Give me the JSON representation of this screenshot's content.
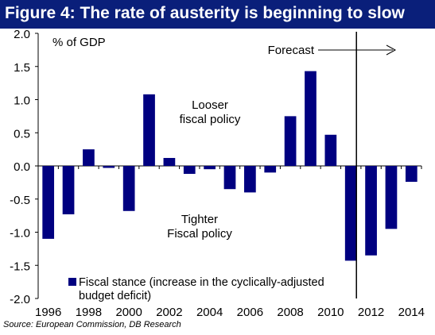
{
  "title": "Figure 4: The rate of austerity is beginning to slow",
  "source": "Source: European Commission, DB Research",
  "colors": {
    "title_bg": "#0a1f7a",
    "bar": "#000080",
    "text": "#000000"
  },
  "chart_data": {
    "type": "bar",
    "title": "Figure 4: The rate of austerity is beginning to slow",
    "ylabel": "% of GDP",
    "ylim": [
      -2.0,
      2.0
    ],
    "yticks": [
      "2.0",
      "1.5",
      "1.0",
      "0.5",
      "0.0",
      "-0.5",
      "-1.0",
      "-1.5",
      "-2.0"
    ],
    "ytick_values": [
      2.0,
      1.5,
      1.0,
      0.5,
      0.0,
      -0.5,
      -1.0,
      -1.5,
      -2.0
    ],
    "categories": [
      "1996",
      "1997",
      "1998",
      "1999",
      "2000",
      "2001",
      "2002",
      "2003",
      "2004",
      "2005",
      "2006",
      "2007",
      "2008",
      "2009",
      "2010",
      "2011",
      "2012",
      "2013",
      "2014"
    ],
    "xtick_labels": [
      "1996",
      "1998",
      "2000",
      "2002",
      "2004",
      "2006",
      "2008",
      "2010",
      "2012",
      "2014"
    ],
    "series": [
      {
        "name": "Fiscal stance (increase in the cyclically-adjusted budget deficit)",
        "values": [
          -1.1,
          -0.73,
          0.25,
          -0.03,
          -0.68,
          1.08,
          0.12,
          -0.12,
          -0.05,
          -0.35,
          -0.4,
          -0.1,
          0.75,
          1.43,
          0.47,
          -1.43,
          -1.35,
          -0.95,
          -0.24
        ]
      }
    ],
    "legend": {
      "position": "bottom-left",
      "line1": "Fiscal stance (increase in the cyclically-adjusted",
      "line2": "budget deficit)"
    },
    "annotations": {
      "looser_line1": "Looser",
      "looser_line2": "fiscal policy",
      "tighter_line1": "Tighter",
      "tighter_line2": "Fiscal policy",
      "forecast": "Forecast"
    },
    "forecast_start": "2011",
    "grid": false
  }
}
